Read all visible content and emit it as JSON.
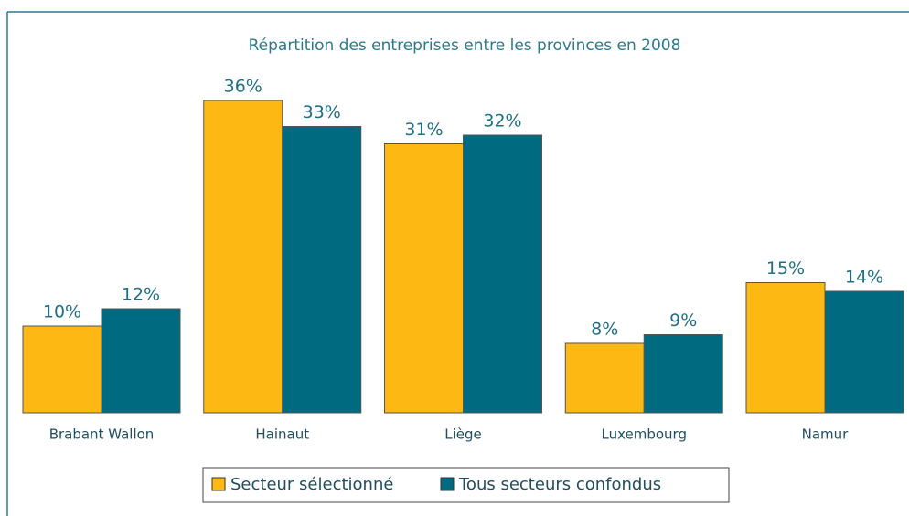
{
  "chart_data": {
    "type": "bar",
    "title": "Répartition des entreprises entre les provinces en 2008",
    "categories": [
      "Brabant Wallon",
      "Hainaut",
      "Liège",
      "Luxembourg",
      "Namur"
    ],
    "series": [
      {
        "name": "Secteur sélectionné",
        "color": "#fdb813",
        "values": [
          10,
          36,
          31,
          8,
          15
        ],
        "value_labels": [
          "10%",
          "36%",
          "31%",
          "8%",
          "15%"
        ]
      },
      {
        "name": "Tous secteurs confondus",
        "color": "#006a80",
        "values": [
          12,
          33,
          32,
          9,
          14
        ],
        "value_labels": [
          "12%",
          "33%",
          "32%",
          "9%",
          "14%"
        ]
      }
    ],
    "legend": "bottom"
  }
}
